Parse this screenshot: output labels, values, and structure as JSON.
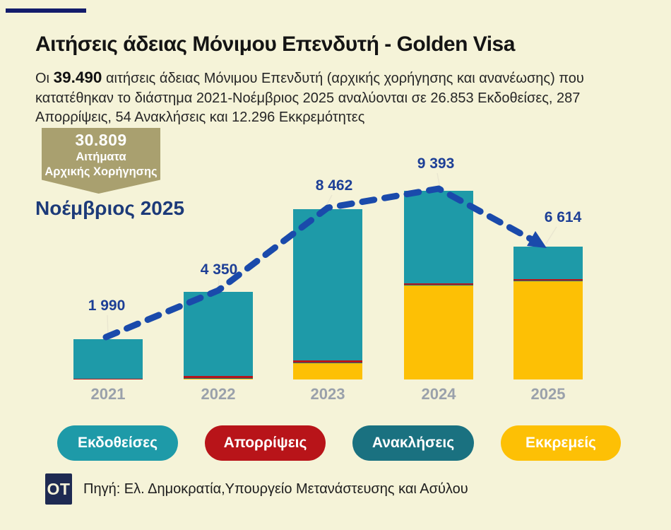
{
  "page": {
    "background": "#f5f3d8"
  },
  "header": {
    "accent_color": "#131c6b",
    "title": "Αιτήσεις άδειας Μόνιμου Επενδυτή - Golden Visa",
    "intro": {
      "prefix": "Οι ",
      "highlight": "39.490",
      "rest": " αιτήσεις άδειας Μόνιμου Επενδυτή (αρχικής χορήγησης και ανανέωσης) που κατατέθηκαν το διάστημα 2021-Νοέμβριος 2025 αναλύονται σε 26.853 Εκδοθείσες, 287 Απορρίψεις, 54 Ανακλήσεις και 12.296 Εκκρεμότητες"
    }
  },
  "badge": {
    "value": "30.809",
    "line1": "Αιτήματα",
    "line2": "Αρχικής Χορήγησης",
    "color": "#a9a06f",
    "text_color": "#ffffff"
  },
  "period_label": "Νοέμβριος 2025",
  "chart_data": {
    "type": "bar",
    "stacked": true,
    "categories": [
      "2021",
      "2022",
      "2023",
      "2024",
      "2025"
    ],
    "totals": [
      1990,
      4350,
      8462,
      9393,
      6614
    ],
    "total_labels": [
      "1 990",
      "4 350",
      "8 462",
      "9 393",
      "6 614"
    ],
    "series": [
      {
        "name": "Εκκρεμείς",
        "color": "#fdc005",
        "values": [
          20,
          70,
          840,
          4680,
          4890
        ]
      },
      {
        "name": "Ανακλήσεις",
        "color": "#1a7180",
        "values": [
          5,
          10,
          15,
          12,
          12
        ]
      },
      {
        "name": "Απορρίψεις",
        "color": "#b81419",
        "values": [
          25,
          90,
          105,
          71,
          72
        ]
      },
      {
        "name": "Εκδοθείσες",
        "color": "#1e9aa8",
        "values": [
          1940,
          4180,
          7502,
          4630,
          1640
        ]
      }
    ],
    "ylim": [
      0,
      10000
    ],
    "grid": false,
    "legend_position": "bottom",
    "trend_line": {
      "color": "#1a4aab",
      "style": "dashed",
      "through": "bar-tops",
      "arrow_end": true
    },
    "value_label_color": "#1d3f96",
    "category_label_color": "#9aa1ab",
    "leader_line_color": "#e9e6d0"
  },
  "legend": [
    {
      "label": "Εκδοθείσες",
      "color": "#1e9aa8"
    },
    {
      "label": "Απορρίψεις",
      "color": "#b81419"
    },
    {
      "label": "Ανακλήσεις",
      "color": "#1a7180"
    },
    {
      "label": "Εκκρεμείς",
      "color": "#fdc005"
    }
  ],
  "footer": {
    "logo_text": "OT",
    "logo_bg": "#1e2a52",
    "source": "Πηγή: Ελ. Δημοκρατία,Υπουργείο Μετανάστευσης και Ασύλου"
  }
}
